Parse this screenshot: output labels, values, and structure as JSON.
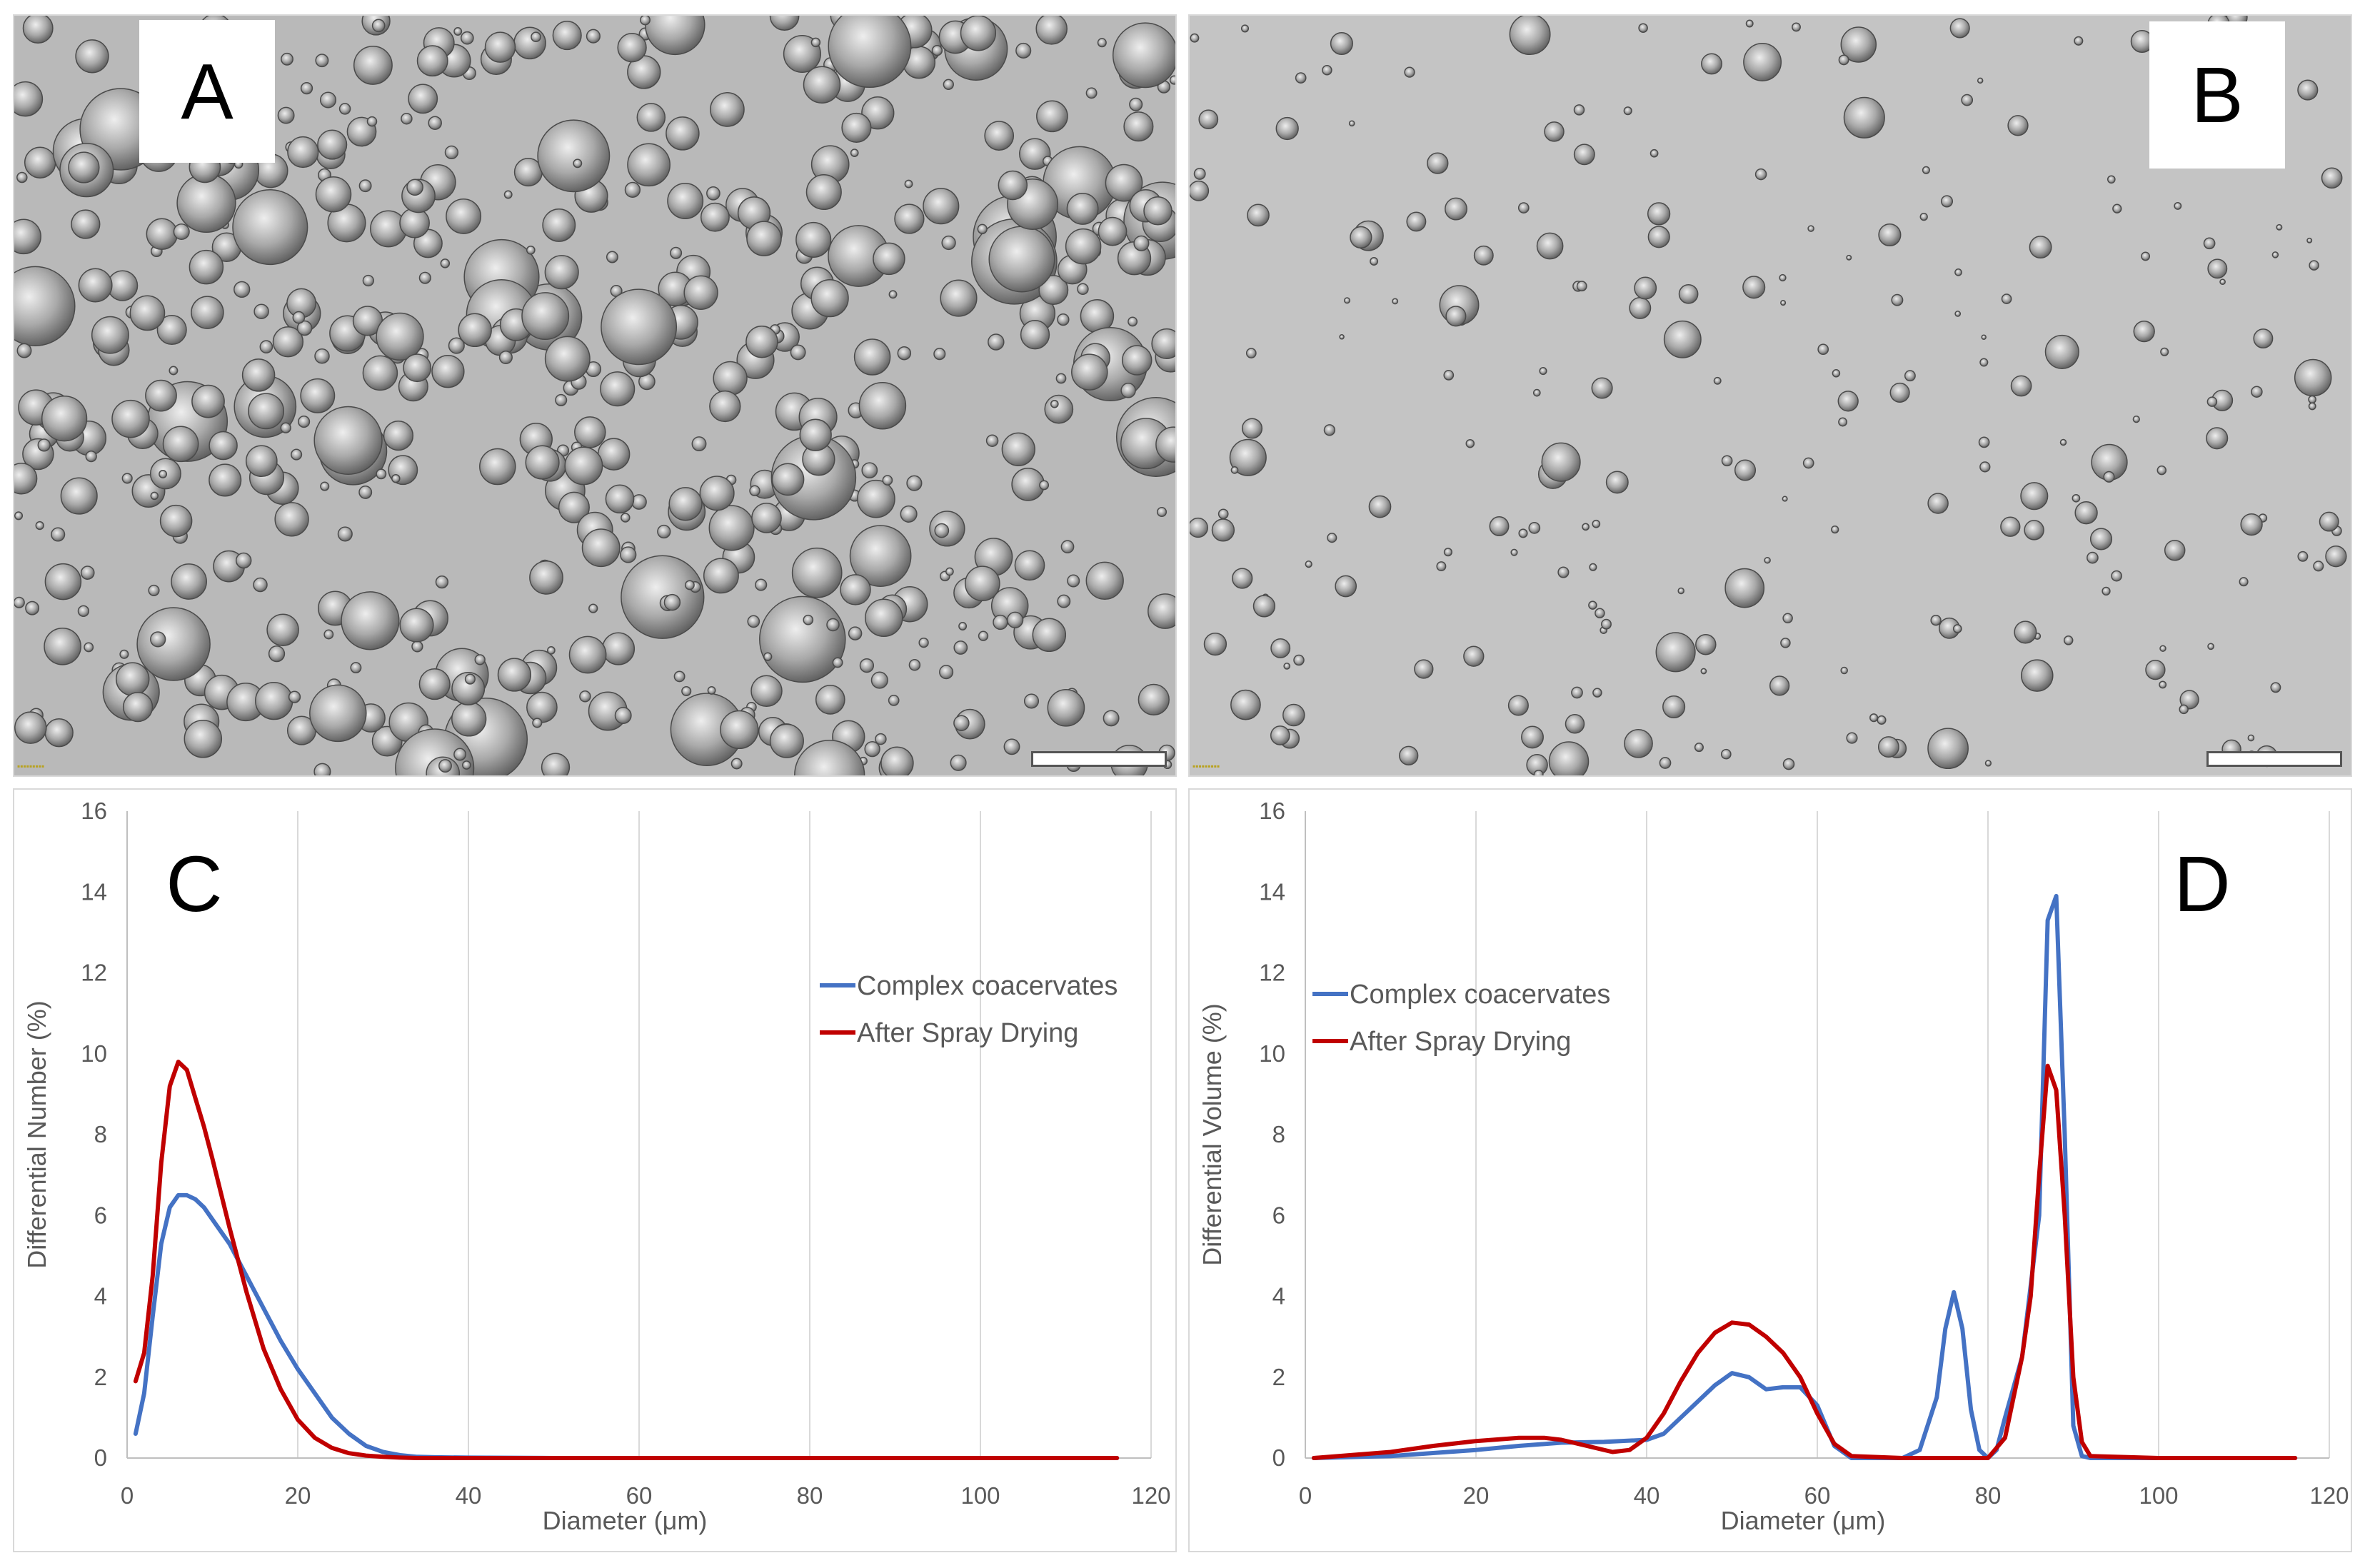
{
  "panels": {
    "A": {
      "label": "A"
    },
    "B": {
      "label": "B"
    },
    "C": {
      "label": "C"
    },
    "D": {
      "label": "D"
    }
  },
  "colors": {
    "complex_coacervates": "#4472c4",
    "after_spray_drying": "#c00000",
    "photo_background_A": "#b9b9b9",
    "photo_background_B": "#c4c4c4"
  },
  "chart_data": [
    {
      "panel": "C",
      "type": "line",
      "xlabel": "Diameter (μm)",
      "ylabel": "Differential Number (%)",
      "xlim": [
        0,
        120
      ],
      "ylim": [
        0,
        16
      ],
      "xticks": [
        0,
        20,
        40,
        60,
        80,
        100,
        120
      ],
      "yticks": [
        0,
        2,
        4,
        6,
        8,
        10,
        12,
        14,
        16
      ],
      "grid": true,
      "legend": "right",
      "series": [
        {
          "name": "Complex coacervates",
          "color": "#4472c4",
          "x": [
            1,
            2,
            3,
            4,
            5,
            6,
            7,
            8,
            9,
            10,
            12,
            14,
            16,
            18,
            20,
            22,
            24,
            26,
            28,
            30,
            32,
            34,
            36,
            40,
            50,
            60,
            80,
            100,
            116
          ],
          "y": [
            0.6,
            1.6,
            3.5,
            5.3,
            6.2,
            6.5,
            6.5,
            6.4,
            6.2,
            5.9,
            5.3,
            4.5,
            3.7,
            2.9,
            2.2,
            1.6,
            1.0,
            0.6,
            0.3,
            0.15,
            0.07,
            0.03,
            0.02,
            0.01,
            0,
            0,
            0,
            0,
            0
          ]
        },
        {
          "name": "After Spray Drying",
          "color": "#c00000",
          "x": [
            1,
            2,
            3,
            4,
            5,
            6,
            7,
            8,
            9,
            10,
            12,
            14,
            16,
            18,
            20,
            22,
            24,
            26,
            28,
            30,
            32,
            34,
            40,
            50,
            60,
            80,
            100,
            116
          ],
          "y": [
            1.9,
            2.6,
            4.5,
            7.3,
            9.2,
            9.8,
            9.6,
            8.9,
            8.2,
            7.4,
            5.7,
            4.1,
            2.7,
            1.7,
            0.95,
            0.5,
            0.25,
            0.12,
            0.06,
            0.03,
            0.01,
            0,
            0,
            0,
            0,
            0,
            0,
            0
          ]
        }
      ]
    },
    {
      "panel": "D",
      "type": "line",
      "xlabel": "Diameter (μm)",
      "ylabel": "Differential Volume (%)",
      "xlim": [
        0,
        120
      ],
      "ylim": [
        0,
        16
      ],
      "xticks": [
        0,
        20,
        40,
        60,
        80,
        100,
        120
      ],
      "yticks": [
        0,
        2,
        4,
        6,
        8,
        10,
        12,
        14,
        16
      ],
      "grid": true,
      "legend": "top-left",
      "series": [
        {
          "name": "Complex coacervates",
          "color": "#4472c4",
          "x": [
            1,
            10,
            20,
            25,
            30,
            35,
            40,
            42,
            45,
            48,
            50,
            52,
            54,
            56,
            58,
            60,
            62,
            64,
            70,
            72,
            74,
            75,
            76,
            77,
            78,
            79,
            80,
            81,
            82,
            84,
            86,
            87,
            88,
            89,
            90,
            91,
            92,
            100,
            116
          ],
          "y": [
            0,
            0.05,
            0.2,
            0.3,
            0.38,
            0.4,
            0.45,
            0.6,
            1.2,
            1.8,
            2.1,
            2.0,
            1.7,
            1.75,
            1.75,
            1.3,
            0.3,
            0,
            0,
            0.2,
            1.5,
            3.2,
            4.1,
            3.2,
            1.2,
            0.2,
            0,
            0.2,
            1.0,
            2.5,
            6,
            13.3,
            13.9,
            8,
            0.8,
            0.05,
            0,
            0,
            0
          ]
        },
        {
          "name": "After Spray Drying",
          "color": "#c00000",
          "x": [
            1,
            10,
            15,
            20,
            25,
            28,
            30,
            33,
            36,
            38,
            40,
            42,
            44,
            46,
            48,
            50,
            52,
            54,
            56,
            58,
            60,
            62,
            64,
            70,
            80,
            82,
            83,
            84,
            85,
            86,
            87,
            88,
            89,
            90,
            91,
            92,
            100,
            116
          ],
          "y": [
            0,
            0.15,
            0.3,
            0.42,
            0.5,
            0.5,
            0.45,
            0.3,
            0.15,
            0.2,
            0.5,
            1.1,
            1.9,
            2.6,
            3.1,
            3.35,
            3.3,
            3.0,
            2.6,
            2.0,
            1.1,
            0.35,
            0.05,
            0,
            0,
            0.5,
            1.5,
            2.5,
            4.0,
            7.0,
            9.7,
            9.1,
            6.0,
            2.0,
            0.4,
            0.05,
            0,
            0
          ]
        }
      ]
    }
  ]
}
